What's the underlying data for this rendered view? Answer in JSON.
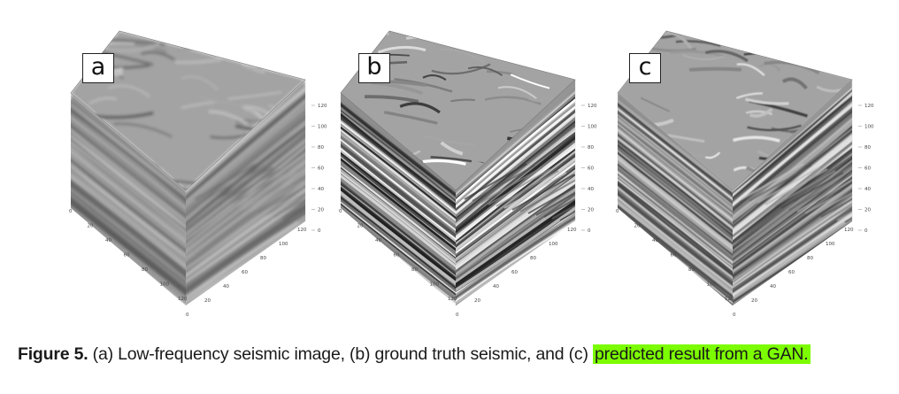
{
  "figure": {
    "caption_label": "Figure 5.",
    "caption_text": " (a) Low-frequency seismic image, (b) ground truth seismic, and (c) ",
    "caption_highlight": "predicted result from a GAN.",
    "highlight_color": "#7CFC00"
  },
  "panels": [
    {
      "label": "a",
      "description_text": "Low-frequency seismic image",
      "z_ticks": [
        "0",
        "20",
        "40",
        "60",
        "80",
        "100",
        "120"
      ],
      "y_ticks": [
        "0",
        "20",
        "40",
        "60",
        "80",
        "100",
        "120"
      ],
      "x_ticks": [
        "0",
        "20",
        "40",
        "60",
        "80",
        "100",
        "120"
      ]
    },
    {
      "label": "b",
      "description_text": "ground truth seismic",
      "z_ticks": [
        "0",
        "20",
        "40",
        "60",
        "80",
        "100",
        "120"
      ],
      "y_ticks": [
        "0",
        "20",
        "40",
        "60",
        "80",
        "100",
        "120"
      ],
      "x_ticks": [
        "0",
        "20",
        "40",
        "60",
        "80",
        "100",
        "120"
      ]
    },
    {
      "label": "c",
      "description_text": "predicted result from a GAN",
      "z_ticks": [
        "0",
        "20",
        "40",
        "60",
        "80",
        "100",
        "120"
      ],
      "y_ticks": [
        "0",
        "20",
        "40",
        "60",
        "80",
        "100",
        "120"
      ],
      "x_ticks": [
        "0",
        "20",
        "40",
        "60",
        "80",
        "100",
        "120"
      ]
    }
  ]
}
